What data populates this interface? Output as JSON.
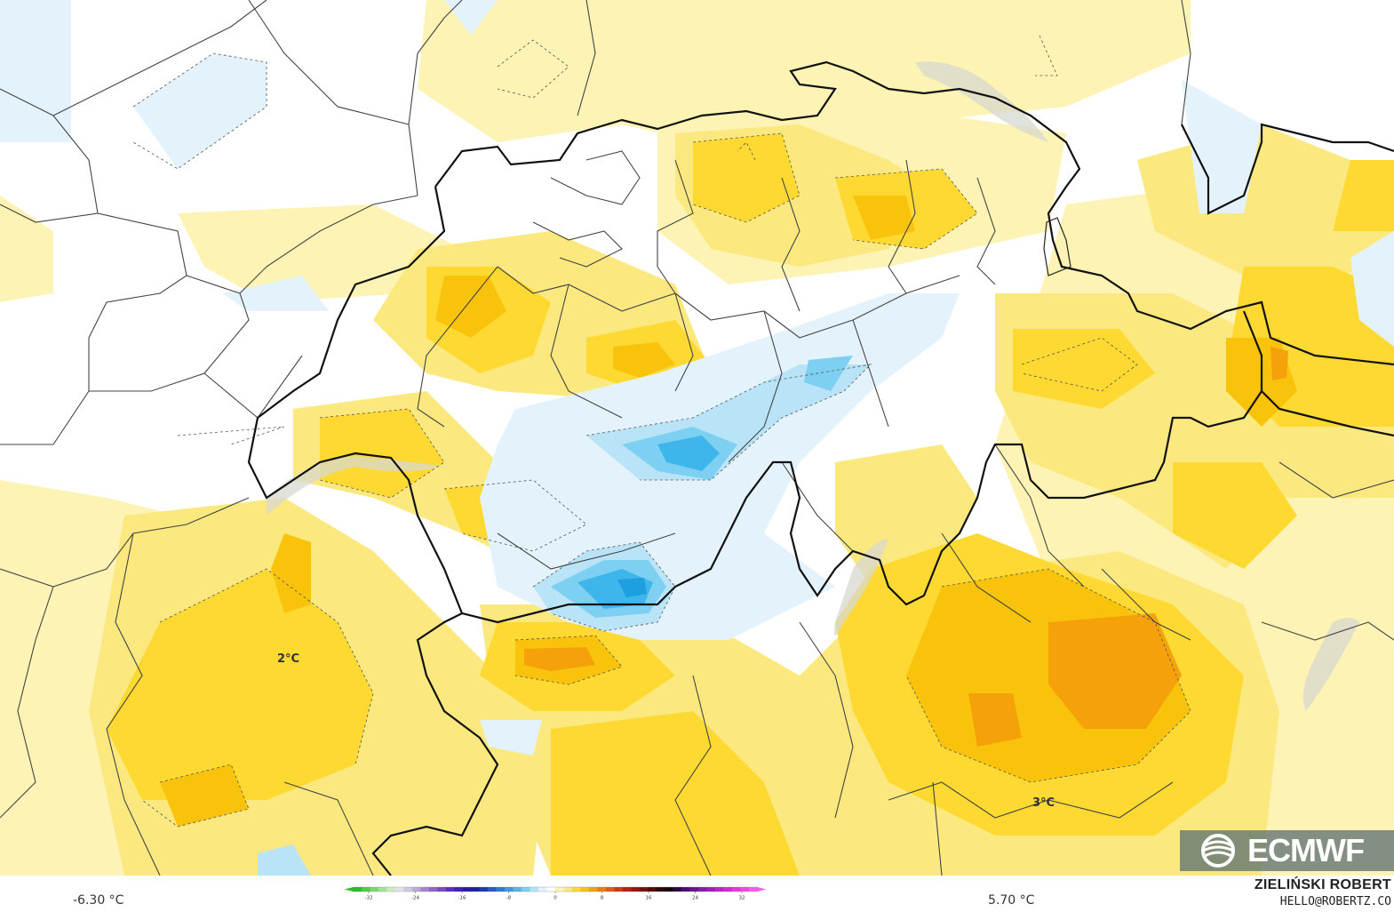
{
  "map": {
    "labels": {
      "contour_2c": "2°C",
      "contour_3c": "3°C"
    },
    "colors": {
      "pale_yellow": "#fdf3b4",
      "light_yellow": "#fbe97f",
      "yellow": "#fdd931",
      "orange_yellow": "#f9c30c",
      "orange": "#f5a20a",
      "pale_blue": "#e4f3fb",
      "light_blue": "#b9e3f6",
      "blue": "#7dd0f1",
      "mid_blue": "#3eb6ec",
      "deep_blue": "#1d9fe0"
    }
  },
  "legend": {
    "min_label": "-6.30 °C",
    "max_label": "5.70 °C",
    "ticks": [
      "-32",
      "-24",
      "-16",
      "-8",
      "0",
      "8",
      "16",
      "24",
      "32"
    ]
  },
  "credit": {
    "name": "ZIELIŃSKI ROBERT",
    "email": "HELLO@ROBERTZ.CO"
  },
  "logo": {
    "text": "ECMWF",
    "icon": "ecmwf-swirl-icon"
  }
}
